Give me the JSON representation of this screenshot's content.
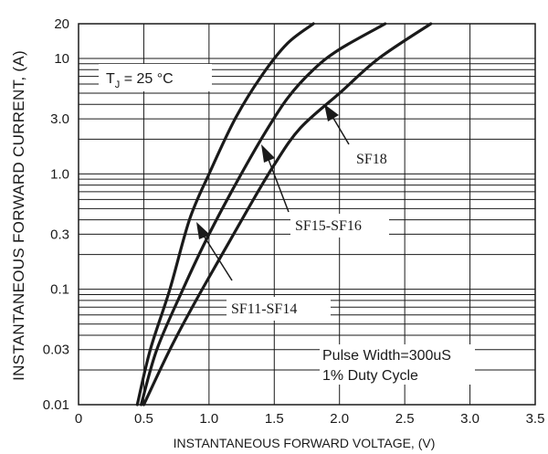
{
  "chart_data": {
    "type": "line",
    "xlabel": "INSTANTANEOUS FORWARD VOLTAGE, (V)",
    "ylabel": "INSTANTANEOUS FORWARD CURRENT, (A)",
    "xlim": [
      0,
      3.5
    ],
    "ylim": [
      0.01,
      20
    ],
    "y_scale": "log",
    "grid": true,
    "x_ticks": [
      "0",
      "0.5",
      "1.0",
      "1.5",
      "2.0",
      "2.5",
      "3.0",
      "3.5"
    ],
    "y_ticks": [
      {
        "value": 0.01,
        "label": "0.01"
      },
      {
        "value": 0.03,
        "label": "0.03"
      },
      {
        "value": 0.1,
        "label": "0.1"
      },
      {
        "value": 0.3,
        "label": "0.3"
      },
      {
        "value": 1,
        "label": "1.0"
      },
      {
        "value": 3,
        "label": "3.0"
      },
      {
        "value": 10,
        "label": "10"
      },
      {
        "value": 20,
        "label": "20"
      }
    ],
    "annotations": {
      "tj": "T",
      "tj_sub": "J",
      "tj_value": " = 25 °C",
      "pulse": "Pulse Width=300uS",
      "duty": "1% Duty Cycle"
    },
    "series": [
      {
        "name": "SF11-SF14",
        "x": [
          0.45,
          0.55,
          0.7,
          0.85,
          1.0,
          1.2,
          1.4,
          1.6,
          1.8
        ],
        "y": [
          0.01,
          0.03,
          0.1,
          0.4,
          1.0,
          3.0,
          7.0,
          13.5,
          20
        ]
      },
      {
        "name": "SF15-SF16",
        "x": [
          0.48,
          0.6,
          0.8,
          1.0,
          1.2,
          1.4,
          1.6,
          1.8,
          2.0,
          2.35
        ],
        "y": [
          0.01,
          0.03,
          0.1,
          0.3,
          0.8,
          2.0,
          4.5,
          8.0,
          12,
          20
        ]
      },
      {
        "name": "SF18",
        "x": [
          0.5,
          0.7,
          0.9,
          1.1,
          1.3,
          1.5,
          1.7,
          2.0,
          2.3,
          2.7
        ],
        "y": [
          0.01,
          0.03,
          0.08,
          0.2,
          0.5,
          1.2,
          2.5,
          5.0,
          10,
          20
        ]
      }
    ]
  }
}
